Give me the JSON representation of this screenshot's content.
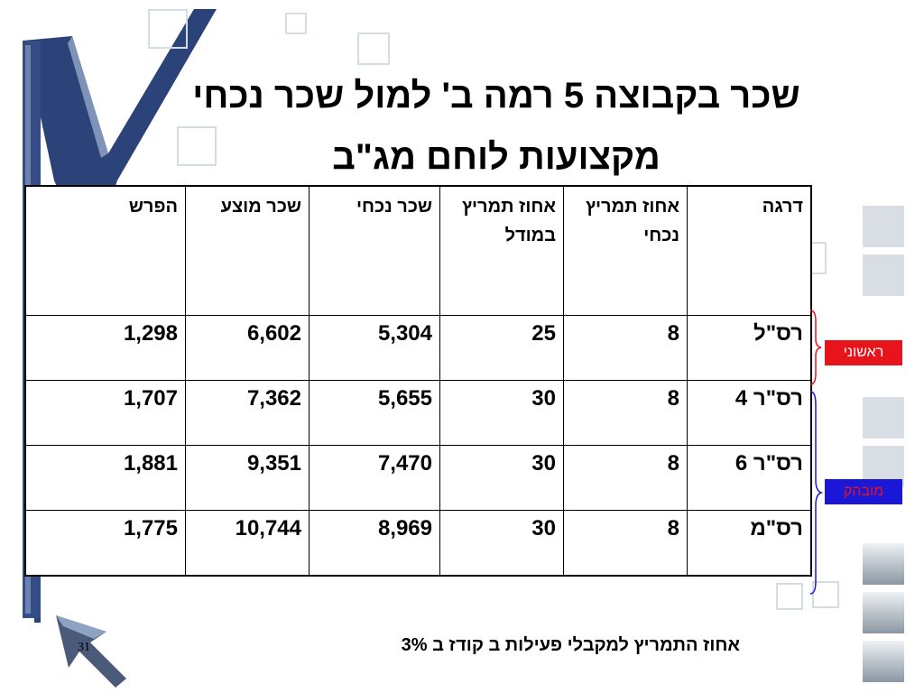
{
  "slide": {
    "title_line1": "שכר בקבוצה 5 רמה ב' למול שכר נכחי",
    "title_line2": "מקצועות לוחם מג\"ב",
    "page_number": "31",
    "footnote": "אחוז התמריץ למקבלי פעילות ב קודז ב 3%"
  },
  "table": {
    "headers": [
      "דרגה",
      "אחוז תמריץ נכחי",
      "אחוז תמריץ במודל",
      "שכר נכחי",
      "שכר מוצע",
      "הפרש"
    ],
    "rows": [
      [
        "רס\"ל",
        "8",
        "25",
        "5,304",
        "6,602",
        "1,298"
      ],
      [
        "רס\"ר 4",
        "8",
        "30",
        "5,655",
        "7,362",
        "1,707"
      ],
      [
        "רס\"ר 6",
        "8",
        "30",
        "7,470",
        "9,351",
        "1,881"
      ],
      [
        "רס\"מ",
        "8",
        "30",
        "8,969",
        "10,744",
        "1,775"
      ]
    ]
  },
  "side_labels": {
    "first": "ראשוני",
    "expert": "מובהק"
  },
  "colors": {
    "label_first_bg": "#e8141b",
    "label_expert_bg": "#1a18d6",
    "accent_blue": "#2a3f7a"
  }
}
